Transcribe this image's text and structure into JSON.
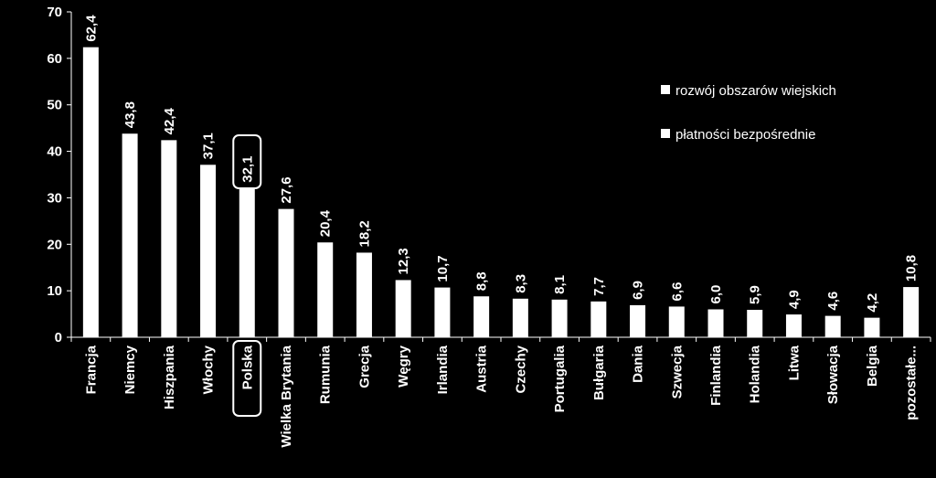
{
  "chart_data": {
    "type": "bar",
    "title": "",
    "xlabel": "",
    "ylabel": "",
    "ylim": [
      0,
      70
    ],
    "yticks": [
      0,
      10,
      20,
      30,
      40,
      50,
      60,
      70
    ],
    "grid": false,
    "legend_position": "top-right",
    "categories": [
      "Francja",
      "Niemcy",
      "Hiszpania",
      "Włochy",
      "Polska",
      "Wielka Brytania",
      "Rumunia",
      "Grecja",
      "Węgry",
      "Irlandia",
      "Austria",
      "Czechy",
      "Portugalia",
      "Bułgaria",
      "Dania",
      "Szwecja",
      "Finlandia",
      "Holandia",
      "Litwa",
      "Słowacja",
      "Belgia",
      "pozostałe..."
    ],
    "values": [
      62.4,
      43.8,
      42.4,
      37.1,
      32.1,
      27.6,
      20.4,
      18.2,
      12.3,
      10.7,
      8.8,
      8.3,
      8.1,
      7.7,
      6.9,
      6.6,
      6.0,
      5.9,
      4.9,
      4.6,
      4.2,
      10.8
    ],
    "data_labels": [
      "62,4",
      "43,8",
      "42,4",
      "37,1",
      "32,1",
      "27,6",
      "20,4",
      "18,2",
      "12,3",
      "10,7",
      "8,8",
      "8,3",
      "8,1",
      "7,7",
      "6,9",
      "6,6",
      "6,0",
      "5,9",
      "4,9",
      "4,6",
      "4,2",
      "10,8"
    ],
    "highlighted_category": "Polska",
    "legend": [
      {
        "label": "rozwój obszarów wiejskich",
        "color": "#ffffff"
      },
      {
        "label": "płatności bezpośrednie",
        "color": "#ffffff"
      }
    ],
    "colors": {
      "background": "#000000",
      "bar": "#ffffff",
      "text": "#ffffff",
      "axis": "#ffffff"
    }
  }
}
